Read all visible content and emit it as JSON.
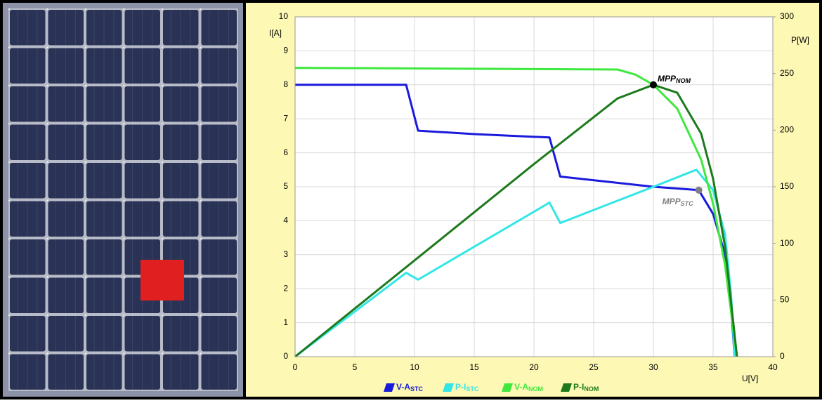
{
  "chart_data": {
    "type": "line",
    "y_label": "I[A]",
    "y2_label": "P[W]",
    "x_label": "U[V]",
    "xlim": [
      0,
      40
    ],
    "xticks": [
      0,
      5,
      10,
      15,
      20,
      25,
      30,
      35,
      40
    ],
    "ylim": [
      0,
      10
    ],
    "yticks": [
      0,
      1,
      2,
      3,
      4,
      5,
      6,
      7,
      8,
      9,
      10
    ],
    "y2lim": [
      0,
      300
    ],
    "y2ticks": [
      0,
      50,
      100,
      150,
      200,
      250,
      300
    ],
    "grid": true,
    "series": [
      {
        "name": "V-A",
        "sub": "STC",
        "color": "#1a1adc",
        "axis": "y",
        "x": [
          0,
          9.3,
          10.3,
          15,
          21.3,
          22.2,
          30,
          33.8,
          35,
          36,
          36.5,
          36.8
        ],
        "values": [
          8,
          8,
          6.65,
          6.55,
          6.45,
          5.3,
          5,
          4.9,
          4.2,
          3,
          1.5,
          0
        ]
      },
      {
        "name": "P-I",
        "sub": "STC",
        "color": "#33e6e6",
        "axis": "y2",
        "x": [
          0,
          9.3,
          10.3,
          21.3,
          22.2,
          30,
          33.6,
          35,
          36,
          36.5,
          36.8
        ],
        "values": [
          0,
          74,
          68,
          136,
          118,
          150,
          165,
          147,
          108,
          55,
          0
        ]
      },
      {
        "name": "V-A",
        "sub": "NOM",
        "color": "#3ee83e",
        "axis": "y",
        "x": [
          0,
          27,
          28.5,
          30,
          32,
          34,
          35,
          36,
          36.8,
          37
        ],
        "values": [
          8.5,
          8.45,
          8.3,
          8.0,
          7.3,
          5.8,
          4.5,
          2.7,
          0.5,
          0
        ]
      },
      {
        "name": "P-I",
        "sub": "NOM",
        "color": "#1c7a1c",
        "axis": "y2",
        "x": [
          0,
          10,
          20,
          27,
          30,
          32,
          34,
          35,
          36,
          37
        ],
        "values": [
          0,
          85,
          170,
          228,
          240,
          233,
          197,
          157,
          97,
          0
        ]
      }
    ],
    "annotations": [
      {
        "text": "MPP",
        "sub": "NOM",
        "x": 30,
        "y": 8,
        "color": "#000000"
      },
      {
        "text": "MPP",
        "sub": "STC",
        "x": 33.8,
        "y": 4.9,
        "color": "#808080"
      }
    ]
  }
}
